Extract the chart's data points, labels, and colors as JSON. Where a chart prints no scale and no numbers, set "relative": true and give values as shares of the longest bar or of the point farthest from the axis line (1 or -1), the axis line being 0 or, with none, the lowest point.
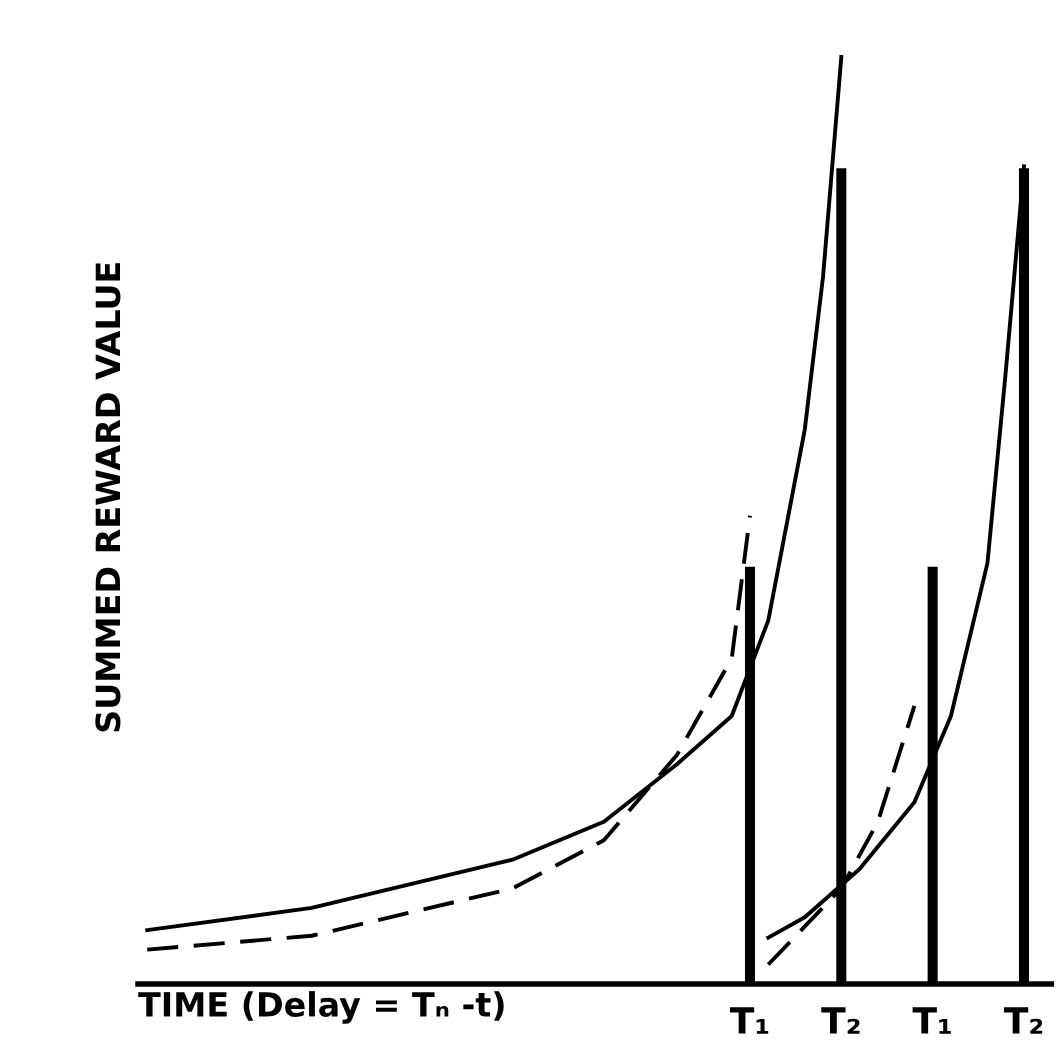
{
  "chart_data": {
    "type": "line",
    "relative": true,
    "xlabel": "TIME (Delay = Tₙ -t)",
    "ylabel": "SUMMED REWARD VALUE",
    "categories": [
      null,
      null,
      null,
      null,
      null,
      null,
      null,
      null,
      null,
      null,
      null,
      null,
      null,
      null,
      null,
      null,
      null,
      null,
      null,
      null,
      null,
      null,
      null,
      null,
      null,
      null,
      null,
      null,
      null,
      null,
      null,
      null,
      null,
      "T₁",
      null,
      null,
      null,
      null,
      "T₂",
      null,
      null,
      null,
      null,
      "T₁",
      null,
      null,
      null,
      null,
      "T₂"
    ],
    "tick_labels": "x",
    "grid": false,
    "legend": false,
    "marker": "none",
    "series": [
      {
        "type": "bar",
        "color": "#000000",
        "values": [
          null,
          null,
          null,
          null,
          null,
          null,
          null,
          null,
          null,
          null,
          null,
          null,
          null,
          null,
          null,
          null,
          null,
          null,
          null,
          null,
          null,
          null,
          null,
          null,
          null,
          null,
          null,
          null,
          null,
          null,
          null,
          null,
          null,
          0.45,
          null,
          null,
          null,
          null,
          0.88,
          null,
          null,
          null,
          null,
          0.45,
          null,
          null,
          null,
          null,
          0.88
        ]
      },
      {
        "line_style": "solid",
        "color": "#000000",
        "values": [
          0.058,
          null,
          null,
          null,
          null,
          null,
          null,
          null,
          null,
          0.082,
          null,
          null,
          null,
          null,
          null,
          null,
          null,
          null,
          null,
          null,
          0.134,
          null,
          null,
          null,
          null,
          0.175,
          null,
          null,
          null,
          0.237,
          null,
          null,
          0.289,
          null,
          0.392,
          null,
          0.598,
          0.763,
          1.0,
          null,
          null,
          null,
          null,
          null,
          null,
          null,
          null,
          null,
          null
        ]
      },
      {
        "line_style": "dashed",
        "color": "#000000",
        "values": [
          0.037,
          null,
          null,
          null,
          null,
          null,
          null,
          null,
          null,
          0.052,
          null,
          null,
          null,
          null,
          null,
          null,
          null,
          null,
          null,
          null,
          0.103,
          null,
          null,
          null,
          null,
          0.155,
          null,
          null,
          null,
          0.247,
          null,
          null,
          0.351,
          0.505,
          null,
          null,
          null,
          null,
          null,
          null,
          null,
          null,
          null,
          null,
          null,
          null,
          null,
          null,
          null
        ]
      },
      {
        "line_style": "dashed",
        "color": "#000000",
        "values": [
          null,
          null,
          null,
          null,
          null,
          null,
          null,
          null,
          null,
          null,
          null,
          null,
          null,
          null,
          null,
          null,
          null,
          null,
          null,
          null,
          null,
          null,
          null,
          null,
          null,
          null,
          null,
          null,
          null,
          null,
          null,
          null,
          null,
          null,
          0.021,
          null,
          0.062,
          null,
          0.103,
          null,
          0.175,
          null,
          0.3,
          null,
          null,
          null,
          null,
          null,
          null
        ]
      },
      {
        "line_style": "solid",
        "color": "#000000",
        "values": [
          null,
          null,
          null,
          null,
          null,
          null,
          null,
          null,
          null,
          null,
          null,
          null,
          null,
          null,
          null,
          null,
          null,
          null,
          null,
          null,
          null,
          null,
          null,
          null,
          null,
          null,
          null,
          null,
          null,
          null,
          null,
          null,
          null,
          null,
          0.05,
          null,
          0.072,
          null,
          null,
          0.124,
          null,
          null,
          0.196,
          null,
          0.289,
          null,
          0.454,
          0.66,
          0.882
        ]
      }
    ]
  }
}
